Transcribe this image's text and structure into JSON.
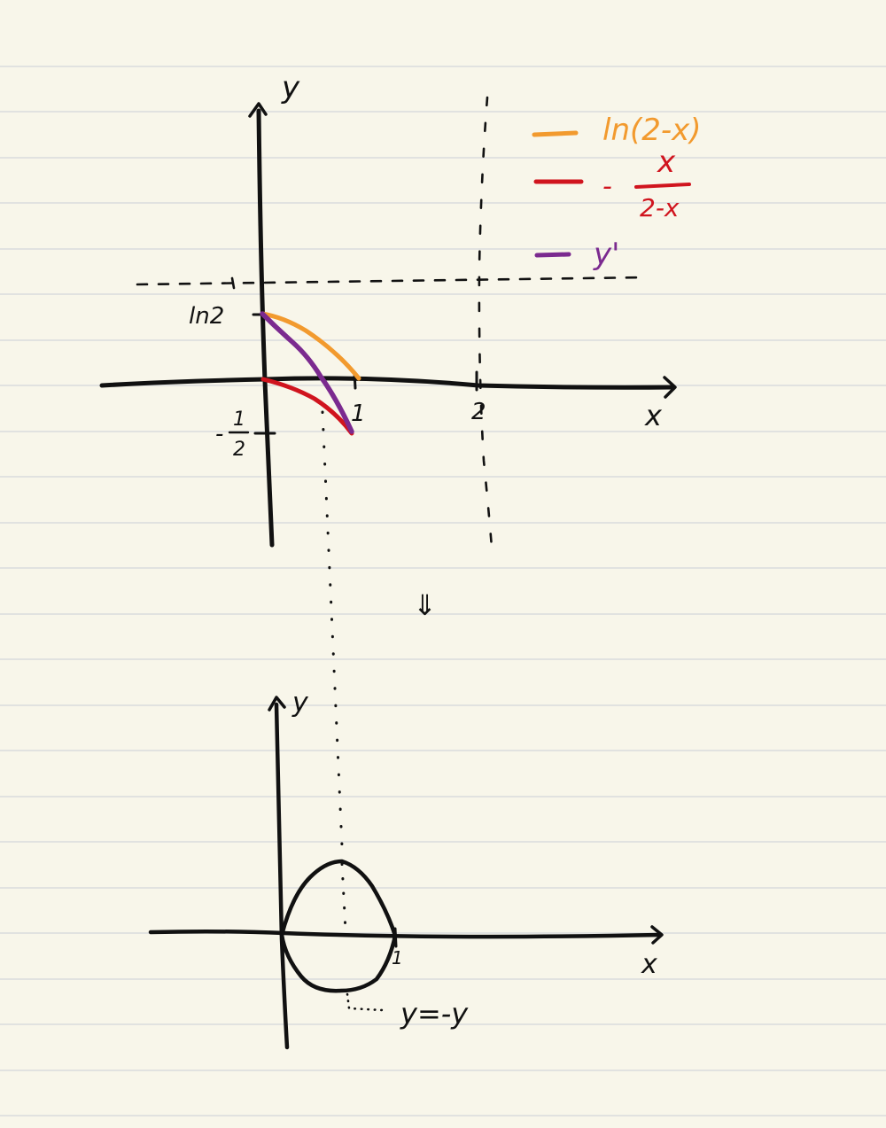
{
  "colors": {
    "paper": "#f8f6ea",
    "rule": "#d9dcdc",
    "ink": "#111111",
    "orange": "#f29a2e",
    "red": "#d0141e",
    "purple": "#7b2a8f"
  },
  "top_graph": {
    "y_axis_label": "y",
    "x_axis_label": "x",
    "tick_ln2": "ln2",
    "tick_half_num": "1",
    "tick_half_den": "2",
    "tick_half_minus": "-",
    "tick_one": "1",
    "tick_two": "2",
    "legend": {
      "ln_label": "ln(2-x)",
      "frac_minus": "-",
      "frac_num": "x",
      "frac_den": "2-x",
      "deriv_label": "y'"
    }
  },
  "arrow_down": "⇓",
  "bottom_graph": {
    "y_axis_label": "y",
    "x_axis_label": "x",
    "tick_one": "1",
    "reflection_label": "y=-y"
  }
}
